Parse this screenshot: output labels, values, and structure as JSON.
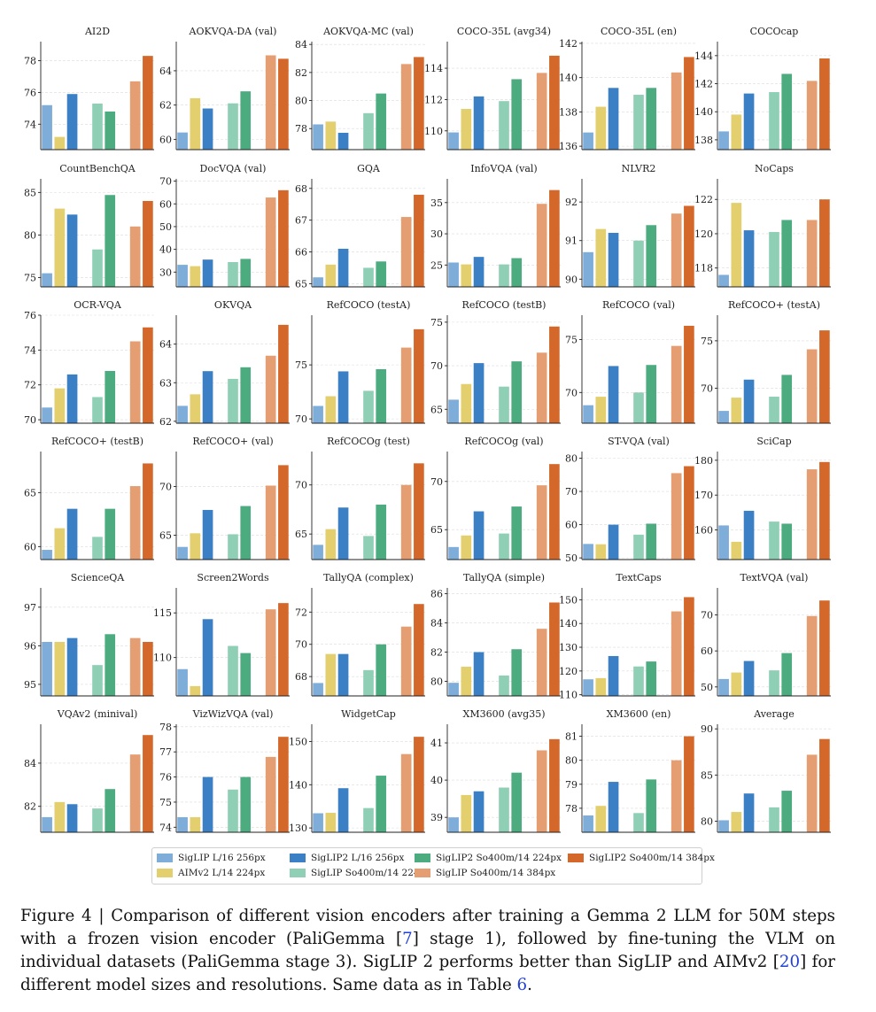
{
  "series": [
    {
      "name": "SigLIP L/16 256px",
      "color": "#7fadd9"
    },
    {
      "name": "AIMv2 L/14 224px",
      "color": "#e3cf6e"
    },
    {
      "name": "SigLIP2 L/16 256px",
      "color": "#3b7fc4"
    },
    {
      "name": "SigLIP So400m/14 224px",
      "color": "#8fcfb5"
    },
    {
      "name": "SigLIP2 So400m/14 224px",
      "color": "#4cab7f"
    },
    {
      "name": "SigLIP So400m/14 384px",
      "color": "#e59e72"
    },
    {
      "name": "SigLIP2 So400m/14 384px",
      "color": "#d4682a"
    }
  ],
  "chart_data": [
    {
      "type": "bar",
      "title": "AI2D",
      "ylim": [
        72.4,
        79.2
      ],
      "yticks": [
        74,
        76,
        78
      ],
      "values": [
        75.2,
        73.2,
        75.9,
        75.3,
        74.8,
        76.7,
        78.3
      ]
    },
    {
      "type": "bar",
      "title": "AOKVQA-DA (val)",
      "ylim": [
        59.4,
        65.7
      ],
      "yticks": [
        60,
        62,
        64
      ],
      "values": [
        60.4,
        62.4,
        61.8,
        62.1,
        62.8,
        64.9,
        64.7
      ]
    },
    {
      "type": "bar",
      "title": "AOKVQA-MC (val)",
      "ylim": [
        76.5,
        84.2
      ],
      "yticks": [
        78,
        80,
        82,
        84
      ],
      "values": [
        78.3,
        78.5,
        77.7,
        79.1,
        80.5,
        82.6,
        83.1
      ]
    },
    {
      "type": "bar",
      "title": "COCO-35L (avg34)",
      "ylim": [
        108.8,
        115.7
      ],
      "yticks": [
        110,
        112,
        114
      ],
      "values": [
        109.9,
        111.4,
        112.2,
        111.9,
        113.3,
        113.7,
        114.8
      ]
    },
    {
      "type": "bar",
      "title": "COCO-35L (en)",
      "ylim": [
        135.8,
        142.1
      ],
      "yticks": [
        136,
        138,
        140,
        142
      ],
      "values": [
        136.8,
        138.3,
        139.4,
        139.0,
        139.4,
        140.3,
        141.2
      ]
    },
    {
      "type": "bar",
      "title": "COCOcap",
      "ylim": [
        137.3,
        145.0
      ],
      "yticks": [
        138,
        140,
        142,
        144
      ],
      "values": [
        138.6,
        139.8,
        141.3,
        141.4,
        142.7,
        142.2,
        143.8
      ]
    },
    {
      "type": "bar",
      "title": "CountBenchQA",
      "ylim": [
        73.9,
        86.6
      ],
      "yticks": [
        75,
        80,
        85
      ],
      "values": [
        75.5,
        83.1,
        82.4,
        78.3,
        84.7,
        81.0,
        84.0
      ]
    },
    {
      "type": "bar",
      "title": "DocVQA (val)",
      "ylim": [
        23.5,
        71.0
      ],
      "yticks": [
        30,
        40,
        50,
        60,
        70
      ],
      "values": [
        33.2,
        32.6,
        35.5,
        34.4,
        35.8,
        62.8,
        66.0
      ]
    },
    {
      "type": "bar",
      "title": "GQA",
      "ylim": [
        64.9,
        68.3
      ],
      "yticks": [
        65,
        66,
        67,
        68
      ],
      "values": [
        65.2,
        65.6,
        66.1,
        65.5,
        65.7,
        67.1,
        67.8
      ]
    },
    {
      "type": "bar",
      "title": "InfoVQA (val)",
      "ylim": [
        21.5,
        38.8
      ],
      "yticks": [
        25,
        30,
        35
      ],
      "values": [
        25.4,
        25.1,
        26.3,
        25.1,
        26.1,
        34.8,
        37.0
      ]
    },
    {
      "type": "bar",
      "title": "NLVR2",
      "ylim": [
        89.8,
        92.6
      ],
      "yticks": [
        90,
        91,
        92
      ],
      "values": [
        90.7,
        91.3,
        91.2,
        91.0,
        91.4,
        91.7,
        91.9
      ]
    },
    {
      "type": "bar",
      "title": "NoCaps",
      "ylim": [
        116.9,
        123.2
      ],
      "yticks": [
        118,
        120,
        122
      ],
      "values": [
        117.6,
        121.8,
        120.2,
        120.1,
        120.8,
        120.8,
        122.0
      ]
    },
    {
      "type": "bar",
      "title": "OCR-VQA",
      "ylim": [
        69.8,
        76.0
      ],
      "yticks": [
        70,
        72,
        74,
        76
      ],
      "values": [
        70.7,
        71.8,
        72.6,
        71.3,
        72.8,
        74.5,
        75.3
      ]
    },
    {
      "type": "bar",
      "title": "OKVQA",
      "ylim": [
        61.95,
        64.75
      ],
      "yticks": [
        62,
        63,
        64
      ],
      "values": [
        62.4,
        62.7,
        63.3,
        63.1,
        63.4,
        63.7,
        64.5
      ]
    },
    {
      "type": "bar",
      "title": "RefCOCO (testA)",
      "ylim": [
        69.6,
        79.6
      ],
      "yticks": [
        70,
        75
      ],
      "values": [
        71.2,
        72.1,
        74.4,
        72.6,
        74.6,
        76.6,
        78.3
      ]
    },
    {
      "type": "bar",
      "title": "RefCOCO (testB)",
      "ylim": [
        63.4,
        75.8
      ],
      "yticks": [
        65,
        70,
        75
      ],
      "values": [
        66.1,
        67.9,
        70.3,
        67.6,
        70.5,
        71.5,
        74.5
      ]
    },
    {
      "type": "bar",
      "title": "RefCOCO (val)",
      "ylim": [
        67.1,
        77.3
      ],
      "yticks": [
        70,
        75
      ],
      "values": [
        68.8,
        69.6,
        72.5,
        70.0,
        72.6,
        74.4,
        76.3
      ]
    },
    {
      "type": "bar",
      "title": "RefCOCO+ (testA)",
      "ylim": [
        66.3,
        77.7
      ],
      "yticks": [
        70,
        75
      ],
      "values": [
        67.6,
        69.0,
        70.9,
        69.1,
        71.4,
        74.1,
        76.1
      ]
    },
    {
      "type": "bar",
      "title": "RefCOCO+ (testB)",
      "ylim": [
        58.8,
        68.8
      ],
      "yticks": [
        60,
        65
      ],
      "values": [
        59.7,
        61.7,
        63.5,
        60.9,
        63.5,
        65.6,
        67.7
      ]
    },
    {
      "type": "bar",
      "title": "RefCOCO+ (val)",
      "ylim": [
        62.5,
        73.6
      ],
      "yticks": [
        65,
        70
      ],
      "values": [
        63.8,
        65.2,
        67.6,
        65.1,
        68.0,
        70.1,
        72.2
      ]
    },
    {
      "type": "bar",
      "title": "RefCOCOg (test)",
      "ylim": [
        62.4,
        73.4
      ],
      "yticks": [
        65,
        70
      ],
      "values": [
        63.9,
        65.5,
        67.7,
        64.8,
        68.0,
        70.0,
        72.2
      ]
    },
    {
      "type": "bar",
      "title": "RefCOCOg (val)",
      "ylim": [
        61.9,
        73.1
      ],
      "yticks": [
        65,
        70
      ],
      "values": [
        63.2,
        64.4,
        66.9,
        64.6,
        67.4,
        69.6,
        71.8
      ]
    },
    {
      "type": "bar",
      "title": "ST-VQA (val)",
      "ylim": [
        49.5,
        82.0
      ],
      "yticks": [
        50,
        60,
        70,
        80
      ],
      "values": [
        54.2,
        54.1,
        60.0,
        57.0,
        60.3,
        75.5,
        77.6
      ]
    },
    {
      "type": "bar",
      "title": "SciCap",
      "ylim": [
        151.5,
        182.5
      ],
      "yticks": [
        160,
        170,
        180
      ],
      "values": [
        161.3,
        156.6,
        165.5,
        162.4,
        161.8,
        177.4,
        179.5
      ]
    },
    {
      "type": "bar",
      "title": "ScienceQA",
      "ylim": [
        94.7,
        97.5
      ],
      "yticks": [
        95,
        96,
        97
      ],
      "values": [
        96.1,
        96.1,
        96.2,
        95.5,
        96.3,
        96.2,
        96.1
      ]
    },
    {
      "type": "bar",
      "title": "Screen2Words",
      "ylim": [
        105.7,
        117.8
      ],
      "yticks": [
        110,
        115
      ],
      "values": [
        108.7,
        106.8,
        114.3,
        111.3,
        110.5,
        115.4,
        116.1
      ]
    },
    {
      "type": "bar",
      "title": "TallyQA (complex)",
      "ylim": [
        66.8,
        73.5
      ],
      "yticks": [
        68,
        70,
        72
      ],
      "values": [
        67.6,
        69.4,
        69.4,
        68.4,
        70.0,
        71.1,
        72.5
      ]
    },
    {
      "type": "bar",
      "title": "TallyQA (simple)",
      "ylim": [
        79.0,
        86.4
      ],
      "yticks": [
        80,
        82,
        84,
        86
      ],
      "values": [
        79.9,
        81.0,
        82.0,
        80.4,
        82.2,
        83.6,
        85.4
      ]
    },
    {
      "type": "bar",
      "title": "TextCaps",
      "ylim": [
        109.5,
        155.0
      ],
      "yticks": [
        110,
        120,
        130,
        140,
        150
      ],
      "values": [
        116.5,
        117.0,
        126.3,
        121.9,
        124.0,
        145.1,
        151.1
      ]
    },
    {
      "type": "bar",
      "title": "TextVQA (val)",
      "ylim": [
        47.5,
        77.5
      ],
      "yticks": [
        50,
        60,
        70
      ],
      "values": [
        52.2,
        54.0,
        57.2,
        54.6,
        59.4,
        69.7,
        74.0
      ]
    },
    {
      "type": "bar",
      "title": "VQAv2 (minival)",
      "ylim": [
        80.8,
        85.8
      ],
      "yticks": [
        82,
        84
      ],
      "values": [
        81.5,
        82.2,
        82.1,
        81.9,
        82.8,
        84.4,
        85.3
      ]
    },
    {
      "type": "bar",
      "title": "VizWizVQA (val)",
      "ylim": [
        73.8,
        78.1
      ],
      "yticks": [
        74,
        75,
        76,
        77,
        78
      ],
      "values": [
        74.4,
        74.4,
        76.0,
        75.5,
        76.0,
        76.8,
        77.6
      ]
    },
    {
      "type": "bar",
      "title": "WidgetCap",
      "ylim": [
        129.0,
        154.0
      ],
      "yticks": [
        130,
        140,
        150
      ],
      "values": [
        133.4,
        133.5,
        139.2,
        134.6,
        142.1,
        147.1,
        151.1
      ]
    },
    {
      "type": "bar",
      "title": "XM3600 (avg35)",
      "ylim": [
        38.6,
        41.5
      ],
      "yticks": [
        39,
        40,
        41
      ],
      "values": [
        39.0,
        39.6,
        39.7,
        39.8,
        40.2,
        40.8,
        41.1
      ]
    },
    {
      "type": "bar",
      "title": "XM3600 (en)",
      "ylim": [
        77.0,
        81.5
      ],
      "yticks": [
        78,
        79,
        80,
        81
      ],
      "values": [
        77.7,
        78.1,
        79.1,
        77.8,
        79.2,
        80.0,
        81.0
      ]
    },
    {
      "type": "bar",
      "title": "Average",
      "ylim": [
        78.8,
        90.5
      ],
      "yticks": [
        80,
        85,
        90
      ],
      "values": [
        80.1,
        81.0,
        83.0,
        81.5,
        83.3,
        87.2,
        88.9
      ]
    }
  ],
  "caption": {
    "p1": "Figure 4 | Comparison of different vision encoders after training a Gemma 2 LLM for 50M steps with a frozen vision encoder (PaliGemma [",
    "r1": "7",
    "p2": "] stage 1), followed by fine-tuning the VLM on individual datasets (PaliGemma stage 3). SigLIP 2 performs better than SigLIP and AIMv2 [",
    "r2": "20",
    "p3": "] for different model sizes and resolutions. Same data as in Table ",
    "r3": "6",
    "p4": "."
  }
}
